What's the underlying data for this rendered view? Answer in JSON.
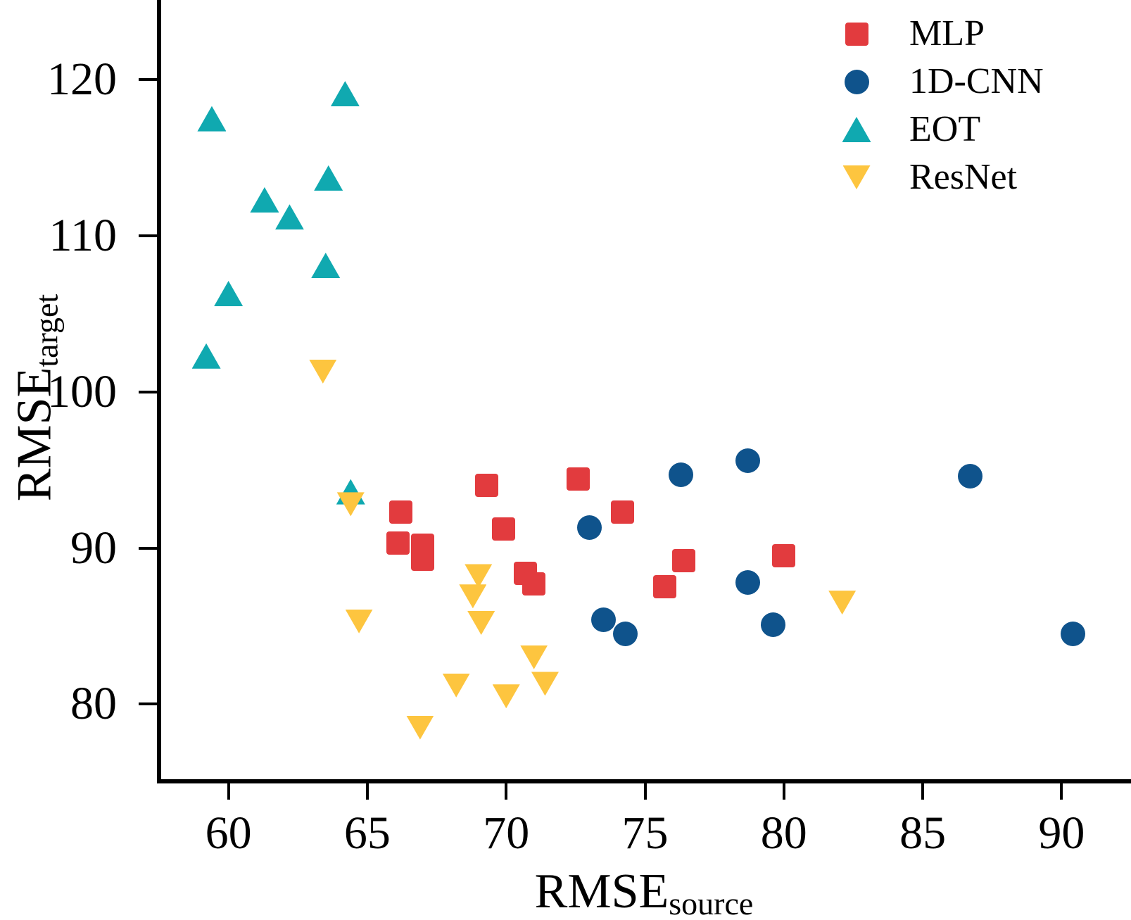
{
  "chart_data": {
    "type": "scatter",
    "title": "",
    "xlabel_main": "RMSE",
    "xlabel_sub": "source",
    "ylabel_main": "RMSE",
    "ylabel_sub": "target",
    "xlim": [
      57.5,
      92.5
    ],
    "ylim": [
      75.1,
      125.1
    ],
    "xticks": [
      "60",
      "65",
      "70",
      "75",
      "80",
      "85",
      "90"
    ],
    "xtick_values": [
      60,
      65,
      70,
      75,
      80,
      85,
      90
    ],
    "yticks": [
      "80",
      "90",
      "100",
      "110",
      "120"
    ],
    "ytick_values": [
      80,
      90,
      100,
      110,
      120
    ],
    "grid": false,
    "legend_position": "top-right",
    "axis_color": "#000000",
    "series": [
      {
        "name": "MLP",
        "marker": "square",
        "color": "#e23b3e",
        "points": [
          [
            66.2,
            92.3
          ],
          [
            66.1,
            90.3
          ],
          [
            67.0,
            90.2
          ],
          [
            67.0,
            89.3
          ],
          [
            69.3,
            94.0
          ],
          [
            69.9,
            91.2
          ],
          [
            70.7,
            88.4
          ],
          [
            71.0,
            87.7
          ],
          [
            72.6,
            94.4
          ],
          [
            74.2,
            92.3
          ],
          [
            75.7,
            87.5
          ],
          [
            76.4,
            89.2
          ],
          [
            80.0,
            89.5
          ]
        ]
      },
      {
        "name": "1D-CNN",
        "marker": "circle",
        "color": "#0f538c",
        "points": [
          [
            73.0,
            91.3
          ],
          [
            73.5,
            85.4
          ],
          [
            74.3,
            84.5
          ],
          [
            76.3,
            94.7
          ],
          [
            78.7,
            95.6
          ],
          [
            78.7,
            87.8
          ],
          [
            79.6,
            85.1
          ],
          [
            86.7,
            94.6
          ],
          [
            90.4,
            84.5
          ]
        ]
      },
      {
        "name": "EOT",
        "marker": "triangle-up",
        "color": "#10a9b0",
        "points": [
          [
            59.4,
            117.5
          ],
          [
            64.2,
            119.1
          ],
          [
            61.3,
            112.3
          ],
          [
            62.2,
            111.2
          ],
          [
            63.6,
            113.7
          ],
          [
            63.5,
            108.1
          ],
          [
            60.0,
            106.3
          ],
          [
            59.2,
            102.3
          ],
          [
            64.4,
            93.6
          ]
        ]
      },
      {
        "name": "ResNet",
        "marker": "triangle-down",
        "color": "#fdc53f",
        "points": [
          [
            63.4,
            101.3
          ],
          [
            64.4,
            92.8
          ],
          [
            64.7,
            85.3
          ],
          [
            69.0,
            88.2
          ],
          [
            68.8,
            86.9
          ],
          [
            69.1,
            85.2
          ],
          [
            66.9,
            78.5
          ],
          [
            68.2,
            81.2
          ],
          [
            70.0,
            80.5
          ],
          [
            71.0,
            83.0
          ],
          [
            71.4,
            81.3
          ],
          [
            82.1,
            86.5
          ]
        ]
      }
    ]
  }
}
